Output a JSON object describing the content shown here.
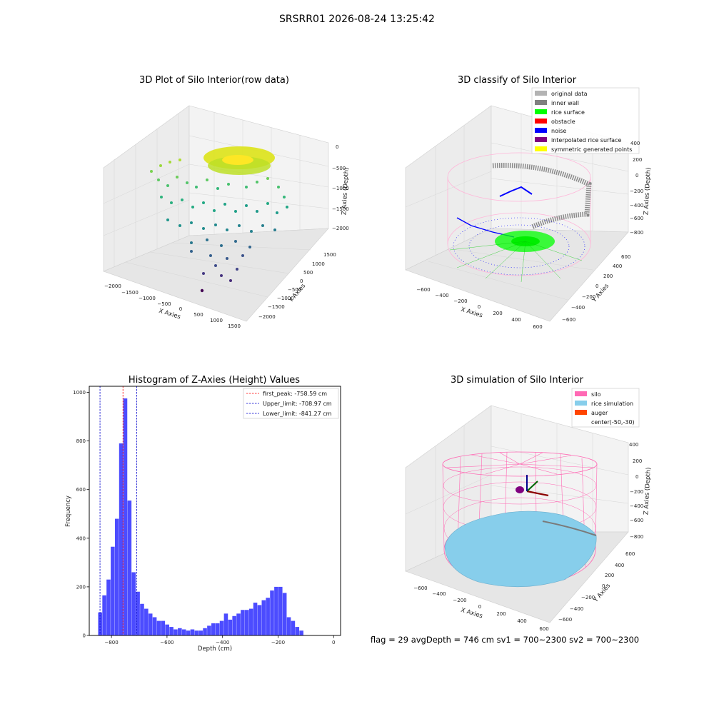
{
  "figure_title": "SRSRR01 2026-08-24 13:25:42",
  "footer_text": "flag = 29  avgDepth = 746 cm  sv1 = 700~2300  sv2 = 700~2300",
  "panels": {
    "raw": {
      "title": "3D Plot of Silo Interior(row data)",
      "xlabel": "X Axies",
      "ylabel": "Y Axies",
      "zlabel": "Z Axies (Depth)",
      "xticks": [
        "−2000",
        "−1500",
        "−1000",
        "−500",
        "0",
        "500",
        "1000",
        "1500"
      ],
      "yticks": [
        "1500",
        "1000",
        "500",
        "0",
        "−500",
        "−1000",
        "−1500",
        "−2000"
      ],
      "zticks": [
        "0",
        "−500",
        "−1000",
        "−1500",
        "−2000"
      ],
      "colormap": "viridis"
    },
    "classify": {
      "title": "3D classify of Silo Interior",
      "xlabel": "X Axies",
      "ylabel": "Y Axies",
      "zlabel": "Z Axies (Depth)",
      "xticks": [
        "−600",
        "−400",
        "−200",
        "0",
        "200",
        "400",
        "600"
      ],
      "yticks": [
        "600",
        "400",
        "200",
        "0",
        "−200",
        "−400",
        "−600"
      ],
      "zticks": [
        "200",
        "0",
        "−200",
        "−400",
        "−600",
        "−800"
      ],
      "zticks_top": "400",
      "legend": [
        {
          "label": "original data",
          "color": "#b3b3b3"
        },
        {
          "label": "inner wall",
          "color": "#808080"
        },
        {
          "label": "rice surface",
          "color": "#00ff00"
        },
        {
          "label": "obstacle",
          "color": "#ff0000"
        },
        {
          "label": "noise",
          "color": "#0000ff"
        },
        {
          "label": "interpolated rice surface",
          "color": "#800080"
        },
        {
          "label": "symmetric generated points",
          "color": "#ffff00"
        }
      ]
    },
    "simulation": {
      "title": "3D simulation of Silo Interior",
      "xlabel": "X Axies",
      "ylabel": "Y Axies",
      "zlabel": "Z Axies (Depth)",
      "xticks": [
        "−600",
        "−400",
        "−200",
        "0",
        "200",
        "400",
        "600"
      ],
      "yticks": [
        "600",
        "400",
        "200",
        "0",
        "−200",
        "−400",
        "−600"
      ],
      "zticks": [
        "400",
        "200",
        "0",
        "−200",
        "−400",
        "−600",
        "−800"
      ],
      "legend": [
        {
          "label": "silo",
          "color": "#ff69b4"
        },
        {
          "label": "rice simulation",
          "color": "#87ceeb"
        },
        {
          "label": "auger",
          "color": "#ff4500"
        },
        {
          "label": "center(-50,-30)",
          "color": ""
        }
      ]
    }
  },
  "chart_data": {
    "type": "bar",
    "title": "Histogram of Z-Axies (Height) Values",
    "xlabel": "Depth (cm)",
    "ylabel": "Frequency",
    "xlim": [
      -880,
      25
    ],
    "ylim": [
      0,
      1025
    ],
    "xticks": [
      -800,
      -600,
      -400,
      -200,
      0
    ],
    "yticks": [
      0,
      200,
      400,
      600,
      800,
      1000
    ],
    "bin_start": -848,
    "bin_width": 15.1,
    "values": [
      95,
      165,
      230,
      365,
      480,
      790,
      975,
      555,
      260,
      180,
      130,
      110,
      90,
      75,
      60,
      60,
      45,
      35,
      25,
      30,
      25,
      20,
      25,
      20,
      20,
      30,
      40,
      50,
      50,
      60,
      90,
      65,
      80,
      90,
      105,
      105,
      110,
      135,
      125,
      145,
      155,
      185,
      200,
      200,
      175,
      75,
      60,
      35,
      20
    ],
    "bar_color": "#0000ff",
    "vlines": [
      {
        "label": "first_peak: -758.59 cm",
        "value": -758.59,
        "color": "#ff0000"
      },
      {
        "label": "Upper_limit: -708.97 cm",
        "value": -708.97,
        "color": "#0000cc"
      },
      {
        "label": "Lower_limit: -841.27 cm",
        "value": -841.27,
        "color": "#0000cc"
      }
    ],
    "legend_position": "upper right"
  }
}
